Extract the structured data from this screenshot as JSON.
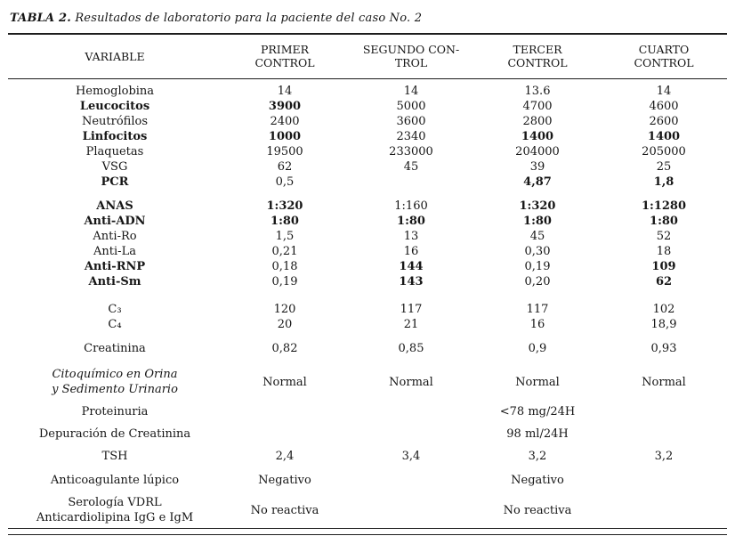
{
  "title": {
    "label": "TABLA 2.",
    "caption": "Resultados de laboratorio para la paciente del caso No. 2"
  },
  "table": {
    "headers": [
      "VARIABLE",
      "PRIMER\nCONTROL",
      "SEGUNDO CON-\nTROL",
      "TERCER\nCONTROL",
      "CUARTO\nCONTROL"
    ],
    "rows": [
      {
        "variable": "Hemoglobina",
        "values": [
          "14",
          "14",
          "13.6",
          "14"
        ]
      },
      {
        "variable": "Leucocitos",
        "vb": true,
        "values": [
          "3900",
          "5000",
          "4700",
          "4600"
        ],
        "b": [
          true,
          false,
          false,
          false
        ]
      },
      {
        "variable": "Neutrófilos",
        "values": [
          "2400",
          "3600",
          "2800",
          "2600"
        ]
      },
      {
        "variable": "Linfocitos",
        "vb": true,
        "values": [
          "1000",
          "2340",
          "1400",
          "1400"
        ],
        "b": [
          true,
          false,
          true,
          true
        ]
      },
      {
        "variable": "Plaquetas",
        "values": [
          "19500",
          "233000",
          "204000",
          "205000"
        ]
      },
      {
        "variable": "VSG",
        "values": [
          "62",
          "45",
          "39",
          "25"
        ]
      },
      {
        "variable": "PCR",
        "vb": true,
        "values": [
          "0,5",
          "",
          "4,87",
          "1,8"
        ],
        "b": [
          false,
          false,
          true,
          true
        ]
      },
      {
        "spacer": 10
      },
      {
        "variable": "ANAS",
        "vb": true,
        "values": [
          "1:320",
          "1:160",
          "1:320",
          "1:1280"
        ],
        "b": [
          true,
          false,
          true,
          true
        ]
      },
      {
        "variable": "Anti-ADN",
        "vb": true,
        "values": [
          "1:80",
          "1:80",
          "1:80",
          "1:80"
        ],
        "b": [
          true,
          true,
          true,
          true
        ]
      },
      {
        "variable": "Anti-Ro",
        "values": [
          "1,5",
          "13",
          "45",
          "52"
        ]
      },
      {
        "variable": "Anti-La",
        "values": [
          "0,21",
          "16",
          "0,30",
          "18"
        ]
      },
      {
        "variable": "Anti-RNP",
        "vb": true,
        "values": [
          "0,18",
          "144",
          "0,19",
          "109"
        ],
        "b": [
          false,
          true,
          false,
          true
        ]
      },
      {
        "variable": "Anti-Sm",
        "vb": true,
        "values": [
          "0,19",
          "143",
          "0,20",
          "62"
        ],
        "b": [
          false,
          true,
          false,
          true
        ]
      },
      {
        "spacer": 14
      },
      {
        "variable": "C₃",
        "values": [
          "120",
          "117",
          "117",
          "102"
        ]
      },
      {
        "variable": "C₄",
        "values": [
          "20",
          "21",
          "16",
          "18,9"
        ]
      },
      {
        "spacer": 10
      },
      {
        "variable": "Creatinina",
        "values": [
          "0,82",
          "0,85",
          "0,9",
          "0,93"
        ]
      },
      {
        "spacer": 12
      },
      {
        "variable": "Citoquímico en Orina\ny Sedimento Urinario",
        "vi": true,
        "values": [
          "Normal",
          "Normal",
          "Normal",
          "Normal"
        ]
      },
      {
        "spacer": 8
      },
      {
        "variable": "Proteinuria",
        "values": [
          "",
          "",
          "<78 mg/24H",
          ""
        ]
      },
      {
        "spacer": 8
      },
      {
        "variable": "Depuración de Creatinina",
        "values": [
          "",
          "",
          "98 ml/24H",
          ""
        ]
      },
      {
        "spacer": 8
      },
      {
        "variable": "TSH",
        "values": [
          "2,4",
          "3,4",
          "3,2",
          "3,2"
        ]
      },
      {
        "spacer": 10
      },
      {
        "variable": "Anticoagulante lúpico",
        "values": [
          "Negativo",
          "",
          "Negativo",
          ""
        ]
      },
      {
        "spacer": 8
      },
      {
        "variable": "Serología VDRL\nAnticardiolipina IgG e IgM",
        "values": [
          "No reactiva",
          "",
          "No reactiva",
          ""
        ]
      }
    ]
  }
}
